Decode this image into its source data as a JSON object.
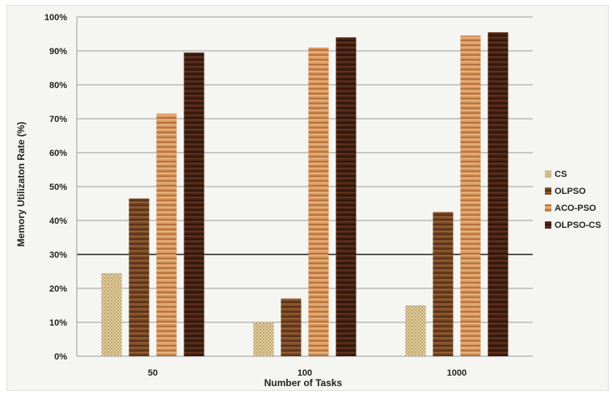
{
  "chart_data": {
    "type": "bar",
    "title": "",
    "xlabel": "Number of Tasks",
    "ylabel": "Memory Utilizaton Rate (%)",
    "categories": [
      "50",
      "100",
      "1000"
    ],
    "ylim": [
      0,
      100
    ],
    "yticks": [
      "0%",
      "10%",
      "20%",
      "30%",
      "40%",
      "50%",
      "60%",
      "70%",
      "80%",
      "90%",
      "100%"
    ],
    "grid": true,
    "legend_position": "right",
    "series": [
      {
        "name": "CS",
        "values": [
          24.5,
          10,
          15
        ],
        "color": "#c9b07a",
        "pattern": "dots"
      },
      {
        "name": "OLPSO",
        "values": [
          46.5,
          17,
          42.5
        ],
        "color": "#7a4a26",
        "pattern": "stripes"
      },
      {
        "name": "ACO-PSO",
        "values": [
          71.5,
          91,
          94.5
        ],
        "color": "#d4925a",
        "pattern": "stripes"
      },
      {
        "name": "OLPSO-CS",
        "values": [
          89.5,
          94,
          95.5
        ],
        "color": "#4a2414",
        "pattern": "stripes"
      }
    ]
  }
}
